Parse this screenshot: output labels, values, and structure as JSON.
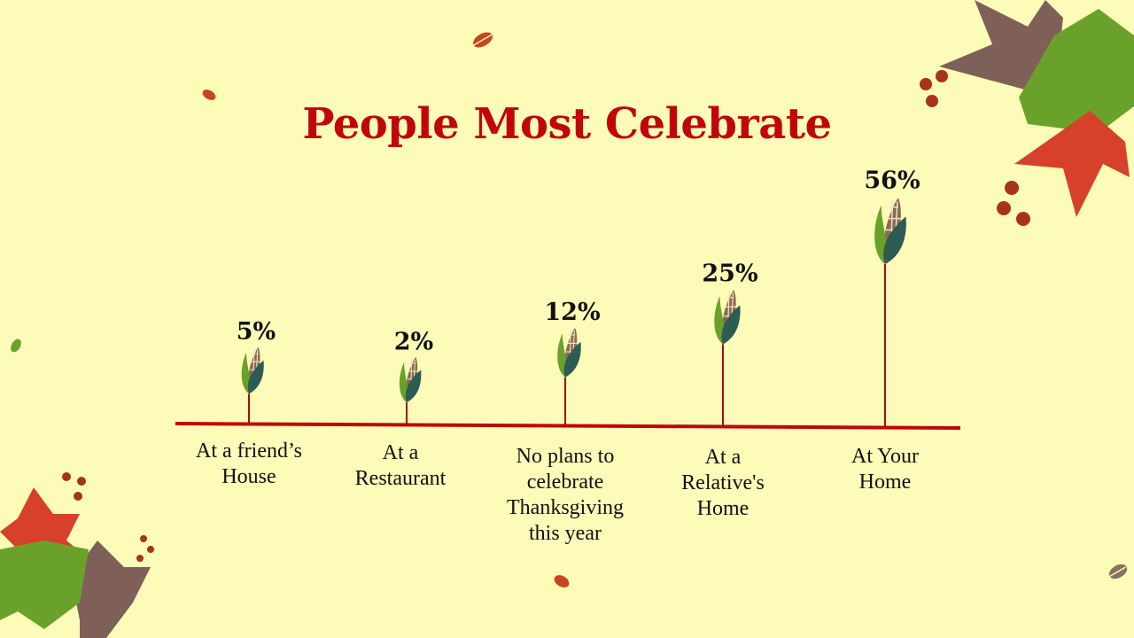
{
  "chart_data": {
    "type": "bar",
    "title": "People Most Celebrate",
    "categories": [
      "At a friend’s House",
      "At a Restaurant",
      "No plans to celebrate Thanksgiving this year",
      "At a Relative's Home",
      "At Your Home"
    ],
    "values": [
      5,
      2,
      12,
      25,
      56
    ],
    "value_labels": [
      "5%",
      "2%",
      "12%",
      "25%",
      "56%"
    ],
    "marker": "corn-icon",
    "grid": false,
    "legend": "none"
  },
  "colors": {
    "background": "#fdfbb8",
    "title": "#c0060c",
    "axis": "#c0060c",
    "stem": "#a01010",
    "leaf_light": "#6aa12b",
    "leaf_dark": "#2e5b53",
    "cob": "#8a6a52"
  },
  "icons": [
    "corn-icon",
    "autumn-leaf-icon",
    "maple-leaf-icon",
    "berry-icon"
  ]
}
